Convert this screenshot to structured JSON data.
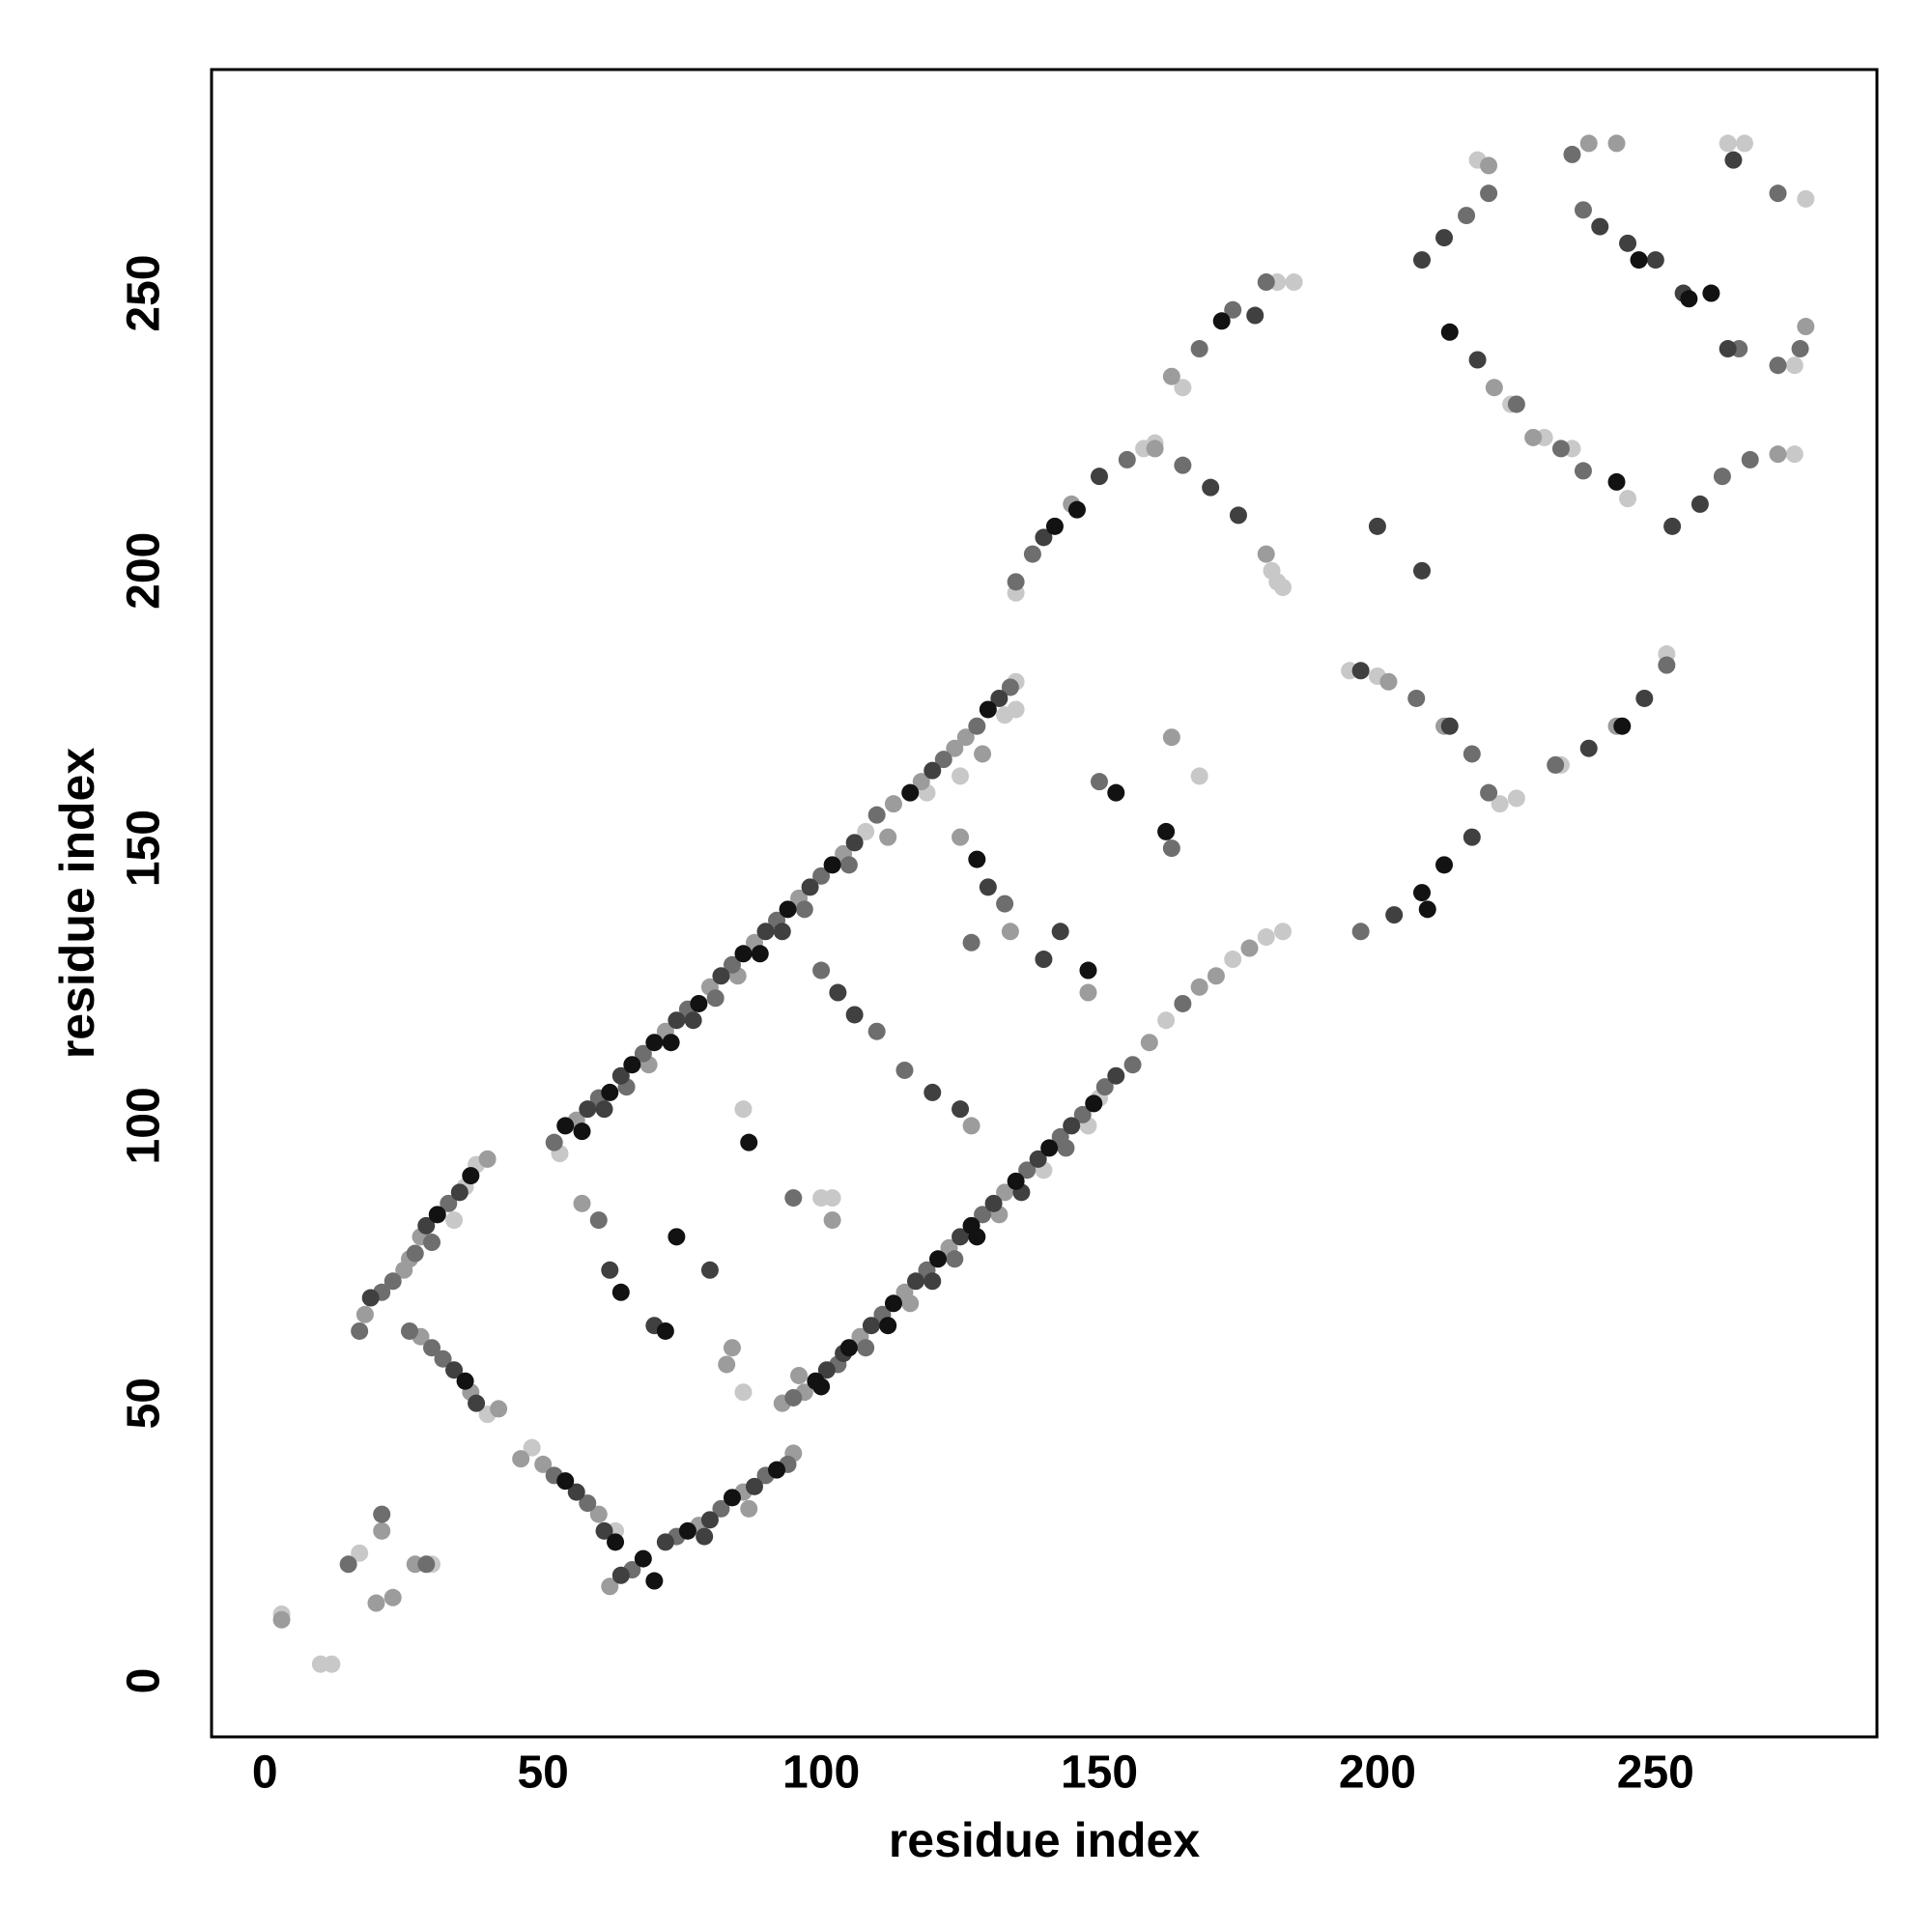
{
  "chart_data": {
    "type": "scatter",
    "x_label": "residue index",
    "y_label": "residue index",
    "xlim": [
      -9.6,
      289.8
    ],
    "ylim": [
      -10.1,
      290.3
    ],
    "xticks": [
      0,
      50,
      100,
      150,
      200,
      250
    ],
    "yticks": [
      0,
      50,
      100,
      150,
      200,
      250
    ],
    "grid": false,
    "series": [
      {
        "color": "#121212",
        "x": [
          54,
          62,
          70,
          78,
          86,
          94,
          102,
          116,
          130,
          57,
          73,
          89,
          99,
          105,
          113,
          121,
          127,
          135,
          141,
          149,
          100,
          112,
          128,
          31,
          37,
          36,
          54,
          63,
          68,
          76,
          84,
          92,
          70,
          64,
          72,
          74,
          87,
          128,
          153,
          142,
          146,
          172,
          208,
          212,
          213,
          244,
          243,
          247,
          256,
          260,
          66,
          209,
          162,
          148
        ],
        "values": [
          100,
          106,
          115,
          122,
          131,
          139,
          147,
          160,
          175,
          99,
          115,
          131,
          54,
          60,
          68,
          76,
          82,
          90,
          96,
          104,
          53,
          64,
          80,
          84,
          91,
          54,
          36,
          25,
          22,
          27,
          33,
          38,
          18,
          70,
          63,
          80,
          97,
          148,
          160,
          208,
          211,
          245,
          142,
          147,
          243,
          172,
          216,
          256,
          249,
          250,
          111,
          139,
          153,
          128
        ]
      },
      {
        "color": "#404040",
        "x": [
          58,
          64,
          74,
          82,
          90,
          98,
          106,
          120,
          132,
          61,
          77,
          93,
          101,
          109,
          117,
          125,
          131,
          139,
          145,
          153,
          104,
          120,
          136,
          19,
          29,
          35,
          34,
          38,
          56,
          61,
          64,
          72,
          80,
          88,
          79,
          62,
          70,
          80,
          103,
          106,
          120,
          125,
          130,
          140,
          143,
          140,
          150,
          170,
          175,
          178,
          197,
          203,
          213,
          217,
          208,
          212,
          218,
          238,
          248,
          253,
          258,
          240,
          245,
          250,
          255,
          264,
          263,
          200,
          208
        ],
        "values": [
          103,
          109,
          119,
          127,
          135,
          143,
          151,
          164,
          177,
          103,
          119,
          135,
          56,
          64,
          72,
          80,
          86,
          94,
          100,
          109,
          59,
          72,
          88,
          69,
          82,
          88,
          56,
          50,
          34,
          27,
          19,
          25,
          29,
          35,
          26,
          74,
          64,
          74,
          124,
          120,
          106,
          103,
          143,
          130,
          135,
          206,
          217,
          215,
          210,
          246,
          182,
          138,
          172,
          152,
          256,
          260,
          238,
          168,
          177,
          208,
          212,
          262,
          259,
          256,
          250,
          274,
          240,
          208,
          200
        ]
      },
      {
        "color": "#6e6e6e",
        "x": [
          52,
          60,
          68,
          76,
          84,
          92,
          100,
          110,
          122,
          128,
          134,
          65,
          81,
          97,
          105,
          95,
          103,
          111,
          119,
          129,
          137,
          143,
          147,
          151,
          156,
          165,
          108,
          124,
          144,
          17,
          21,
          23,
          27,
          33,
          30,
          26,
          30,
          32,
          52,
          58,
          66,
          74,
          82,
          90,
          94,
          60,
          95,
          100,
          110,
          115,
          127,
          133,
          150,
          163,
          135,
          138,
          155,
          168,
          174,
          180,
          165,
          207,
          217,
          220,
          197,
          216,
          220,
          225,
          233,
          237,
          232,
          252,
          262,
          267,
          235,
          237,
          265,
          272,
          272,
          276,
          21,
          29,
          15
        ],
        "values": [
          97,
          105,
          113,
          121,
          129,
          137,
          145,
          156,
          166,
          172,
          179,
          107,
          123,
          139,
          147,
          51,
          57,
          66,
          74,
          84,
          92,
          98,
          102,
          107,
          111,
          122,
          60,
          76,
          96,
          63,
          70,
          72,
          77,
          86,
          79,
          63,
          60,
          58,
          37,
          32,
          20,
          26,
          31,
          37,
          39,
          83,
          87,
          128,
          117,
          110,
          133,
          140,
          162,
          150,
          198,
          203,
          220,
          240,
          247,
          252,
          219,
          177,
          167,
          160,
          135,
          264,
          268,
          230,
          222,
          218,
          165,
          183,
          217,
          220,
          275,
          265,
          240,
          268,
          237,
          240,
          30,
          21,
          21
        ]
      },
      {
        "color": "#9c9c9c",
        "x": [
          56,
          72,
          80,
          88,
          96,
          104,
          113,
          118,
          124,
          126,
          69,
          85,
          112,
          129,
          93,
          97,
          107,
          115,
          123,
          133,
          159,
          168,
          171,
          177,
          96,
          116,
          132,
          18,
          25,
          28,
          40,
          26,
          28,
          37,
          42,
          46,
          50,
          60,
          62,
          78,
          86,
          95,
          87,
          57,
          83,
          84,
          102,
          125,
          127,
          134,
          148,
          163,
          145,
          160,
          180,
          163,
          202,
          212,
          220,
          221,
          228,
          243,
          272,
          238,
          243,
          277,
          3,
          20,
          23,
          27,
          21
        ],
        "values": [
          101,
          117,
          125,
          133,
          141,
          149,
          158,
          162,
          168,
          170,
          111,
          127,
          152,
          167,
          50,
          52,
          62,
          70,
          78,
          88,
          115,
          125,
          127,
          132,
          55,
          68,
          84,
          66,
          74,
          80,
          94,
          76,
          62,
          52,
          49,
          40,
          39,
          30,
          17,
          28,
          34,
          41,
          31,
          86,
          57,
          60,
          83,
          152,
          100,
          135,
          124,
          170,
          212,
          222,
          203,
          235,
          180,
          172,
          273,
          233,
          224,
          172,
          221,
          277,
          277,
          244,
          11,
          14,
          15,
          21,
          27
        ]
      },
      {
        "color": "#c8c8c8",
        "x": [
          108,
          135,
          53,
          119,
          125,
          133,
          135,
          162,
          174,
          180,
          183,
          140,
          148,
          38,
          34,
          36,
          40,
          48,
          63,
          86,
          86,
          100,
          102,
          168,
          150,
          135,
          158,
          183,
          181,
          165,
          182,
          185,
          195,
          200,
          222,
          218,
          224,
          230,
          235,
          245,
          233,
          252,
          275,
          263,
          266,
          277,
          275,
          3,
          10,
          12,
          17,
          30,
          160,
          225,
          182
        ],
        "values": [
          153,
          180,
          95,
          160,
          163,
          174,
          175,
          119,
          130,
          134,
          135,
          92,
          100,
          93,
          83,
          89,
          48,
          42,
          27,
          52,
          103,
          87,
          87,
          163,
          105,
          196,
          222,
          197,
          200,
          233,
          252,
          252,
          182,
          181,
          158,
          274,
          230,
          224,
          222,
          213,
          165,
          185,
          221,
          277,
          277,
          267,
          237,
          12,
          3,
          3,
          23,
          21,
          223,
          159,
          198
        ]
      }
    ]
  }
}
